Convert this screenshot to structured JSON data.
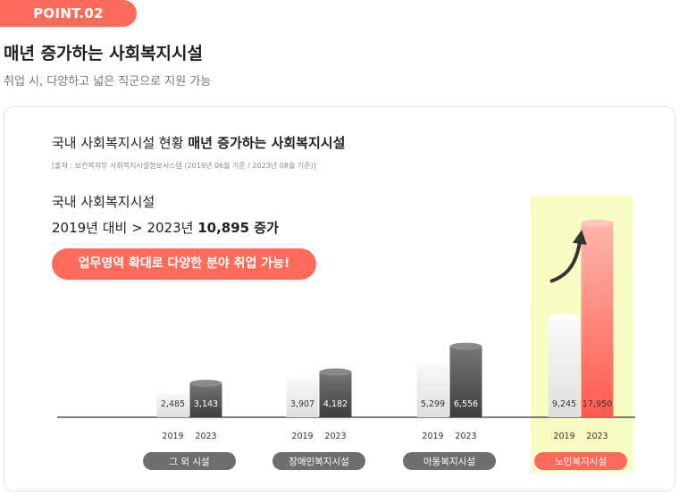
{
  "badge": "POINT.02",
  "headline": "매년 증가하는 사회복지시설",
  "subhead": "취업 시, 다양하고 넓은 직군으로 지원 가능",
  "card": {
    "title_normal": "국내 사회복지시설 현황",
    "title_bold": "매년 증가하는 사회복지시설",
    "source": "[출처 : 보건복지부 사회복지시설정보시스템 (2019년 06월 기준 / 2023년 08월 기준)]",
    "lead_line1": "국내 사회복지시설",
    "lead_line2_prefix": "2019년 대비  >  2023년",
    "lead_line2_bold": "10,895 증가",
    "pill_text": "업무영역 확대로 다양한 분야 취업 가능!"
  },
  "colors": {
    "accent": "#ff6b5b",
    "highlight": "#f8fdc4",
    "bar_2019_top": "#fbfbfb",
    "bar_2019_bottom": "#dedede",
    "bar_2023_top": "#767676",
    "bar_2023_bottom": "#3e3e3e",
    "bar_highlight_top": "#ffb7ac",
    "bar_highlight_bottom": "#ff5b4e",
    "category_pill": "#6e6e6e"
  },
  "chart_data": {
    "type": "bar",
    "series_names": [
      "2019",
      "2023"
    ],
    "categories": [
      "그 외 시설",
      "장애인복지시설",
      "아동복지시설",
      "노인복지시설"
    ],
    "series": [
      {
        "name": "2019",
        "values": [
          2485,
          3907,
          5299,
          9245
        ]
      },
      {
        "name": "2023",
        "values": [
          3143,
          4182,
          6556,
          17950
        ]
      }
    ],
    "value_labels": [
      [
        "2,485",
        "3,143"
      ],
      [
        "3,907",
        "4,182"
      ],
      [
        "5,299",
        "6,556"
      ],
      [
        "9,245",
        "17,950"
      ]
    ],
    "highlight_category": "노인복지시설",
    "ylim": [
      0,
      18500
    ]
  }
}
